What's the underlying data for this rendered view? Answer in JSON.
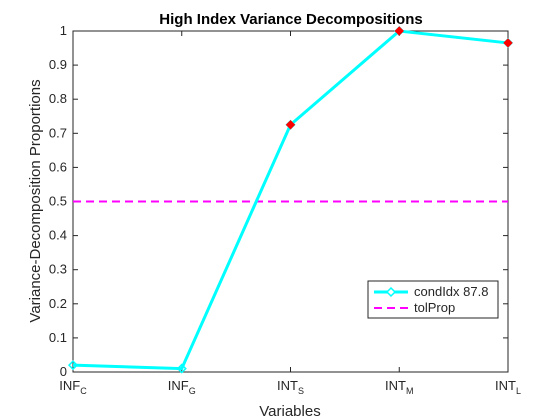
{
  "chart_data": {
    "type": "line",
    "title": "High Index Variance Decompositions",
    "xlabel": "Variables",
    "ylabel": "Variance-Decomposition Proportions",
    "ylim": [
      0,
      1
    ],
    "yticks": [
      "0",
      "0.1",
      "0.2",
      "0.3",
      "0.4",
      "0.5",
      "0.6",
      "0.7",
      "0.8",
      "0.9",
      "1"
    ],
    "categories": [
      {
        "base": "INF",
        "sub": "C"
      },
      {
        "base": "INF",
        "sub": "G"
      },
      {
        "base": "INT",
        "sub": "S"
      },
      {
        "base": "INT",
        "sub": "M"
      },
      {
        "base": "INT",
        "sub": "L"
      }
    ],
    "series": [
      {
        "name": "condIdx 87.8",
        "values": [
          0.02,
          0.01,
          0.725,
          1.0,
          0.965
        ],
        "color": "#00ffff",
        "marker": "diamond"
      }
    ],
    "highlighted_points": [
      2,
      3,
      4
    ],
    "highlight_color": "#ff0000",
    "threshold": {
      "name": "tolProp",
      "value": 0.5,
      "color": "#ff00ff",
      "style": "dashed"
    },
    "legend_position": "bottom-right",
    "grid": false
  }
}
